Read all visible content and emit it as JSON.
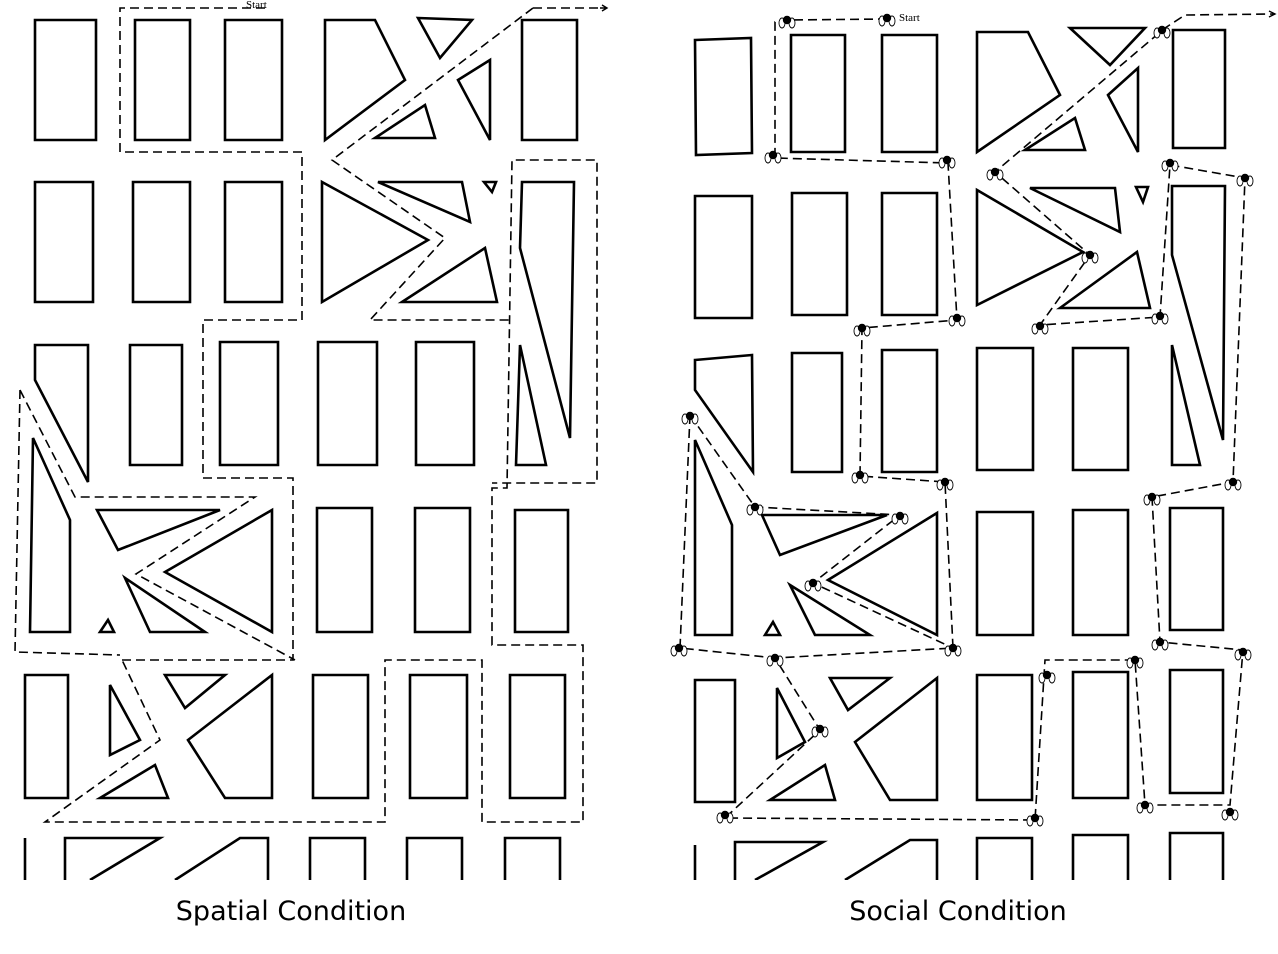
{
  "panels": [
    {
      "id": "spatial",
      "start_label": "Start",
      "caption": "Spatial Condition"
    },
    {
      "id": "social",
      "start_label": "Start",
      "caption": "Social Condition",
      "landmark_icon": "person-figure-icon"
    }
  ],
  "colors": {
    "line": "#000000",
    "background": "#ffffff"
  }
}
